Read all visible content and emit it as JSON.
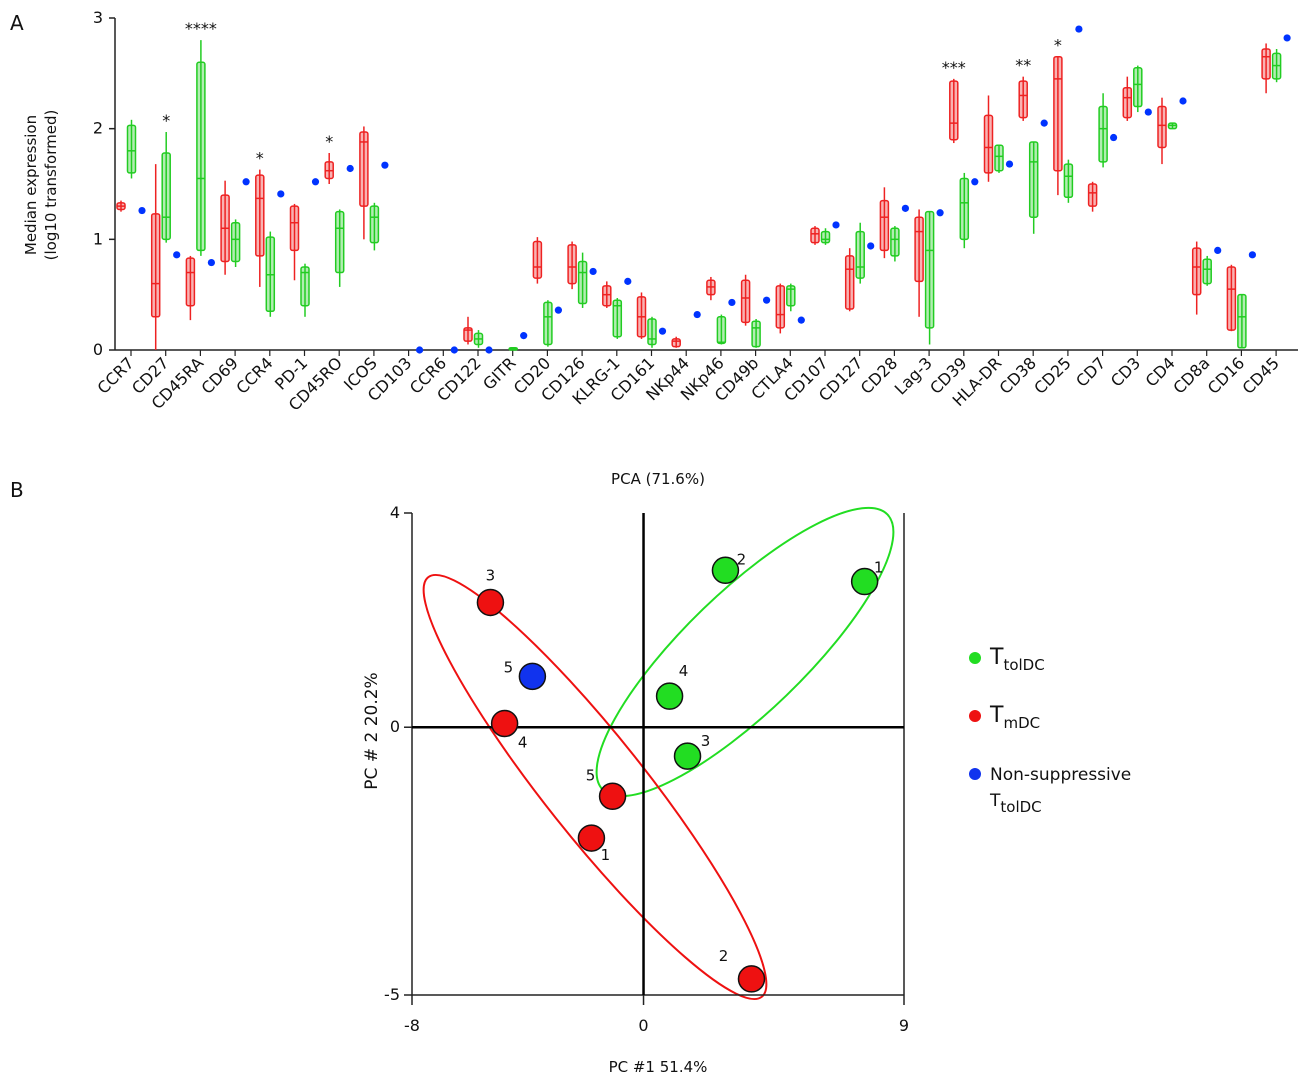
{
  "chart_data": [
    {
      "type": "box",
      "panel_label": "A",
      "y_label": [
        "Median expression",
        "(log10 transformed)"
      ],
      "categories": [
        "CCR7",
        "CD27",
        "CD45RA",
        "CD69",
        "CCR4",
        "PD-1",
        "CD45RO",
        "ICOS",
        "CD103",
        "CCR6",
        "CD122",
        "GITR",
        "CD20",
        "CD126",
        "KLRG-1",
        "CD161",
        "NKp44",
        "NKp46",
        "CD49b",
        "CTLA4",
        "CD107",
        "CD127",
        "CD28",
        "Lag-3",
        "CD39",
        "HLA-DR",
        "CD38",
        "CD25",
        "CD7",
        "CD3",
        "CD4",
        "CD8a",
        "CD16",
        "CD45"
      ],
      "significance": [
        null,
        "*",
        "****",
        null,
        "*",
        null,
        "*",
        null,
        null,
        null,
        null,
        null,
        null,
        null,
        null,
        null,
        null,
        null,
        null,
        null,
        null,
        null,
        null,
        null,
        "***",
        null,
        "**",
        "*",
        null,
        null,
        null,
        null,
        null,
        null
      ],
      "ylim": [
        0,
        3
      ],
      "yticks": [
        0,
        1,
        2,
        3
      ],
      "series": [
        {
          "kind": "box",
          "color": "#ee2222",
          "values": [
            [
              1.25,
              1.27,
              1.3,
              1.33,
              1.35
            ],
            [
              0,
              0.3,
              0.6,
              1.23,
              1.68
            ],
            [
              0.27,
              0.4,
              0.7,
              0.83,
              0.85
            ],
            [
              0.68,
              0.8,
              1.1,
              1.4,
              1.53
            ],
            [
              0.57,
              0.85,
              1.37,
              1.58,
              1.63
            ],
            [
              0.63,
              0.9,
              1.15,
              1.3,
              1.32
            ],
            [
              1.5,
              1.55,
              1.62,
              1.7,
              1.78
            ],
            [
              1.0,
              1.3,
              1.88,
              1.97,
              2.02
            ],
            null,
            null,
            [
              0.05,
              0.08,
              0.18,
              0.2,
              0.3
            ],
            null,
            [
              0.6,
              0.65,
              0.75,
              0.98,
              1.02
            ],
            [
              0.55,
              0.6,
              0.75,
              0.95,
              0.98
            ],
            [
              0.38,
              0.4,
              0.5,
              0.58,
              0.62
            ],
            [
              0.1,
              0.12,
              0.3,
              0.48,
              0.52
            ],
            [
              0.02,
              0.03,
              0.08,
              0.1,
              0.12
            ],
            [
              0.45,
              0.5,
              0.57,
              0.63,
              0.66
            ],
            [
              0.22,
              0.25,
              0.47,
              0.63,
              0.68
            ],
            [
              0.15,
              0.2,
              0.32,
              0.58,
              0.6
            ],
            [
              0.95,
              0.97,
              1.05,
              1.1,
              1.12
            ],
            [
              0.35,
              0.37,
              0.73,
              0.85,
              0.92
            ],
            [
              0.83,
              0.9,
              1.2,
              1.35,
              1.47
            ],
            [
              0.3,
              0.62,
              1.07,
              1.2,
              1.27
            ],
            [
              1.87,
              1.9,
              2.05,
              2.43,
              2.45
            ],
            [
              1.52,
              1.6,
              1.83,
              2.12,
              2.3
            ],
            [
              2.07,
              2.1,
              2.3,
              2.43,
              2.47
            ],
            [
              1.4,
              1.62,
              2.45,
              2.65,
              2.65
            ],
            [
              1.25,
              1.3,
              1.42,
              1.5,
              1.52
            ],
            [
              2.07,
              2.1,
              2.28,
              2.37,
              2.47
            ],
            [
              1.68,
              1.83,
              2.03,
              2.2,
              2.28
            ],
            [
              0.32,
              0.5,
              0.75,
              0.92,
              0.98
            ],
            [
              0.17,
              0.18,
              0.55,
              0.75,
              0.77
            ],
            [
              2.32,
              2.45,
              2.65,
              2.72,
              2.77
            ]
          ]
        },
        {
          "kind": "box",
          "color": "#22cc22",
          "values": [
            [
              1.55,
              1.6,
              1.8,
              2.03,
              2.08
            ],
            [
              0.97,
              1.0,
              1.2,
              1.78,
              1.97
            ],
            [
              0.85,
              0.9,
              1.55,
              2.6,
              2.8
            ],
            [
              0.75,
              0.8,
              1.0,
              1.15,
              1.18
            ],
            [
              0.3,
              0.35,
              0.68,
              1.02,
              1.07
            ],
            [
              0.3,
              0.4,
              0.7,
              0.75,
              0.78
            ],
            [
              0.57,
              0.7,
              1.1,
              1.25,
              1.27
            ],
            [
              0.9,
              0.97,
              1.2,
              1.3,
              1.33
            ],
            null,
            null,
            [
              0.02,
              0.05,
              0.1,
              0.15,
              0.18
            ],
            [
              0,
              0,
              0.01,
              0.02,
              0.02
            ],
            [
              0.03,
              0.05,
              0.3,
              0.43,
              0.45
            ],
            [
              0.38,
              0.42,
              0.7,
              0.8,
              0.88
            ],
            [
              0.1,
              0.12,
              0.4,
              0.45,
              0.47
            ],
            [
              0.02,
              0.05,
              0.1,
              0.28,
              0.3
            ],
            null,
            [
              0.05,
              0.06,
              0.07,
              0.3,
              0.32
            ],
            [
              0.02,
              0.03,
              0.2,
              0.26,
              0.28
            ],
            [
              0.35,
              0.4,
              0.55,
              0.58,
              0.6
            ],
            [
              0.95,
              0.97,
              1.0,
              1.07,
              1.1
            ],
            [
              0.6,
              0.65,
              0.75,
              1.07,
              1.15
            ],
            [
              0.8,
              0.85,
              1.0,
              1.1,
              1.12
            ],
            [
              0.05,
              0.2,
              0.9,
              1.25,
              1.25
            ],
            [
              0.92,
              1.0,
              1.33,
              1.55,
              1.6
            ],
            [
              1.6,
              1.62,
              1.75,
              1.85,
              1.85
            ],
            [
              1.05,
              1.2,
              1.7,
              1.88,
              1.88
            ],
            [
              1.33,
              1.38,
              1.57,
              1.68,
              1.72
            ],
            [
              1.65,
              1.7,
              2.0,
              2.2,
              2.32
            ],
            [
              2.15,
              2.2,
              2.4,
              2.55,
              2.57
            ],
            [
              2.0,
              2.0,
              2.03,
              2.05,
              2.05
            ],
            [
              0.58,
              0.6,
              0.73,
              0.82,
              0.85
            ],
            [
              0.02,
              0.02,
              0.3,
              0.5,
              0.5
            ],
            [
              2.42,
              2.45,
              2.57,
              2.68,
              2.72
            ]
          ]
        },
        {
          "kind": "dot",
          "color": "#0033ff",
          "values": [
            1.26,
            0.86,
            0.79,
            1.52,
            1.41,
            1.52,
            1.64,
            1.67,
            0,
            0,
            0,
            0.13,
            0.36,
            0.71,
            0.62,
            0.17,
            0.32,
            0.43,
            0.45,
            0.27,
            1.13,
            0.94,
            1.28,
            1.24,
            1.52,
            1.68,
            2.05,
            2.9,
            1.92,
            2.15,
            2.25,
            0.9,
            0.86,
            2.82
          ]
        }
      ]
    },
    {
      "type": "scatter",
      "panel_label": "B",
      "title": "PCA (71.6%)",
      "x_label": "PC #1 51.4%",
      "y_label": "PC # 2 20.2%",
      "xlim": [
        -8,
        9
      ],
      "ylim": [
        -5,
        4
      ],
      "xticks": [
        -8,
        0,
        9
      ],
      "yticks": [
        -5,
        0,
        4
      ],
      "series": [
        {
          "name": "T",
          "subscript": "tolDC",
          "color": "#22dd22",
          "x": [
            7.64,
            2.83,
            0.9,
            1.52
          ],
          "values": [
            2.72,
            2.93,
            0.58,
            -0.54
          ],
          "labels": [
            "1",
            "2",
            "4",
            "3"
          ]
        },
        {
          "name": "T",
          "subscript": "mDC",
          "color": "#ee1111",
          "x": [
            -1.8,
            3.73,
            -5.29,
            -4.8,
            -1.07
          ],
          "values": [
            -2.07,
            -4.7,
            2.33,
            0.07,
            -1.29
          ],
          "labels": [
            "1",
            "2",
            "3",
            "4",
            "5"
          ]
        },
        {
          "name": "Non-suppressive",
          "name_line2": "T",
          "subscript": "tolDC",
          "color": "#1133ee",
          "x": [
            -3.84
          ],
          "values": [
            0.95
          ],
          "labels": [
            "5"
          ]
        }
      ]
    }
  ]
}
